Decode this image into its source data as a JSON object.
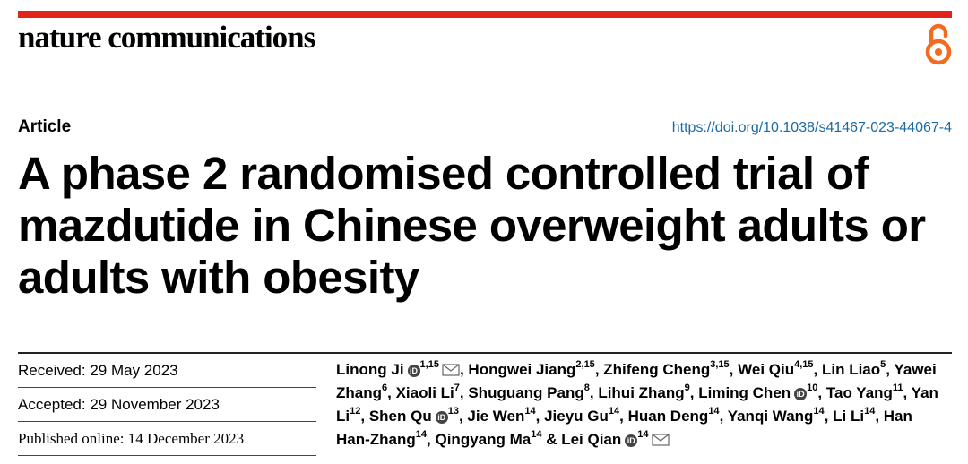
{
  "journal": "nature communications",
  "article_type": "Article",
  "doi": "https://doi.org/10.1038/s41467-023-44067-4",
  "title": "A phase 2 randomised controlled trial of mazdutide in Chinese overweight adults or adults with obesity",
  "dates": {
    "received": "Received: 29 May 2023",
    "accepted": "Accepted: 29 November 2023",
    "published": "Published online: 14 December 2023"
  },
  "authors": [
    {
      "name": "Linong Ji",
      "sup": "1,15",
      "orcid": true,
      "email": true,
      "sep": ", "
    },
    {
      "name": "Hongwei Jiang",
      "sup": "2,15",
      "sep": ", "
    },
    {
      "name": "Zhifeng Cheng",
      "sup": "3,15",
      "sep": ", "
    },
    {
      "name": "Wei Qiu",
      "sup": "4,15",
      "sep": ", "
    },
    {
      "name": "Lin Liao",
      "sup": "5",
      "sep": ", "
    },
    {
      "name": "Yawei Zhang",
      "sup": "6",
      "sep": ", "
    },
    {
      "name": "Xiaoli Li",
      "sup": "7",
      "sep": ", "
    },
    {
      "name": "Shuguang Pang",
      "sup": "8",
      "sep": ", "
    },
    {
      "name": "Lihui Zhang",
      "sup": "9",
      "sep": ", "
    },
    {
      "name": "Liming Chen",
      "sup": "10",
      "orcid": true,
      "sep": ", "
    },
    {
      "name": "Tao Yang",
      "sup": "11",
      "sep": ", "
    },
    {
      "name": "Yan Li",
      "sup": "12",
      "sep": ", "
    },
    {
      "name": "Shen Qu",
      "sup": "13",
      "orcid": true,
      "sep": ", "
    },
    {
      "name": "Jie Wen",
      "sup": "14",
      "sep": ", "
    },
    {
      "name": "Jieyu Gu",
      "sup": "14",
      "sep": ", "
    },
    {
      "name": "Huan Deng",
      "sup": "14",
      "sep": ", "
    },
    {
      "name": "Yanqi Wang",
      "sup": "14",
      "sep": ", "
    },
    {
      "name": "Li Li",
      "sup": "14",
      "sep": ", "
    },
    {
      "name": "Han Han-Zhang",
      "sup": "14",
      "sep": ", "
    },
    {
      "name": "Qingyang Ma",
      "sup": "14",
      "sep": " & "
    },
    {
      "name": "Lei Qian",
      "sup": "14",
      "orcid": true,
      "email": true,
      "sep": ""
    }
  ],
  "colors": {
    "brand_bar": "#e1251b",
    "open_access": "#f26b21",
    "doi_link": "#1a6aa6"
  },
  "icons": {
    "open_access": "open-access-lock-icon",
    "orcid": "orcid-icon",
    "email": "envelope-icon"
  }
}
